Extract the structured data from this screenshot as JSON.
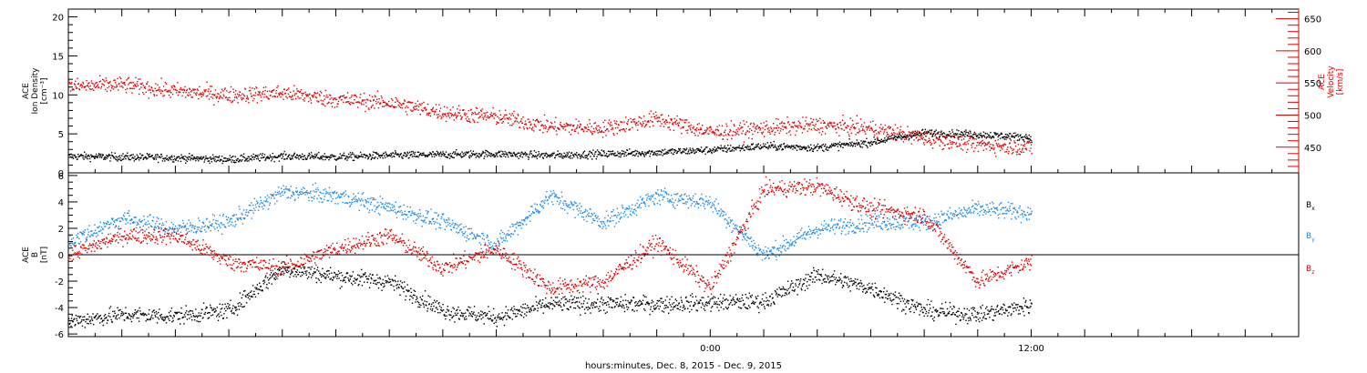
{
  "chart_data": [
    {
      "type": "scatter",
      "panel": "top",
      "x_range_hours": [
        -24,
        22
      ],
      "ylim_left": [
        0,
        21
      ],
      "ylim_right": [
        410,
        665
      ],
      "ylabel_left": [
        "ACE",
        "Ion Density",
        "[cm⁻³]"
      ],
      "ylabel_right": [
        "ACE",
        "Velocity",
        "[km/s]"
      ],
      "left_ticks": [
        0,
        5,
        10,
        15,
        20
      ],
      "right_ticks": [
        450,
        500,
        550,
        600,
        650
      ],
      "colors": {
        "density": "#000000",
        "velocity": "#e00000"
      },
      "series": [
        {
          "axis": "left",
          "x": [
            -24,
            -22,
            -20,
            -18,
            -16,
            -14,
            -12,
            -10,
            -8,
            -6,
            -4,
            -2,
            0,
            2,
            4,
            6,
            8,
            10,
            12
          ],
          "y": [
            2.2,
            2.1,
            2.0,
            1.8,
            2.2,
            2.1,
            2.3,
            2.4,
            2.5,
            2.3,
            2.5,
            2.7,
            3.0,
            3.5,
            3.3,
            4.0,
            5.2,
            5.0,
            4.6
          ]
        },
        {
          "axis": "right",
          "x": [
            -24,
            -22,
            -20,
            -18,
            -16,
            -14,
            -12,
            -10,
            -8,
            -6,
            -4,
            -2,
            0,
            2,
            4,
            6,
            8,
            10,
            12
          ],
          "y": [
            545,
            548,
            538,
            532,
            535,
            525,
            520,
            505,
            498,
            483,
            480,
            495,
            474,
            480,
            485,
            480,
            465,
            455,
            450
          ]
        }
      ]
    },
    {
      "type": "scatter",
      "panel": "bottom",
      "x_range_hours": [
        -24,
        22
      ],
      "ylim": [
        -6.2,
        6.2
      ],
      "ylabel": [
        "ACE",
        "B",
        "[nT]"
      ],
      "y_ticks": [
        -6,
        -4,
        -2,
        0,
        2,
        4,
        6
      ],
      "legend": [
        {
          "label": "B",
          "sub": "x",
          "color": "#000000"
        },
        {
          "label": "B",
          "sub": "y",
          "color": "#1e8ae8"
        },
        {
          "label": "B",
          "sub": "z",
          "color": "#e00000"
        }
      ],
      "series": [
        {
          "name": "Bx",
          "x": [
            -24,
            -22,
            -20,
            -18,
            -16,
            -14,
            -12,
            -10,
            -8,
            -6,
            -4,
            -2,
            0,
            2,
            4,
            6,
            8,
            10,
            12
          ],
          "y": [
            -5.0,
            -4.5,
            -4.6,
            -4.2,
            -1.0,
            -1.6,
            -2.0,
            -4.2,
            -4.7,
            -3.7,
            -3.7,
            -3.7,
            -3.6,
            -3.5,
            -1.5,
            -2.5,
            -4.2,
            -4.5,
            -3.8
          ]
        },
        {
          "name": "By",
          "x": [
            -24,
            -22,
            -20,
            -18,
            -16,
            -14,
            -12,
            -10,
            -8,
            -6,
            -4,
            -2,
            0,
            2,
            4,
            6,
            8,
            10,
            12
          ],
          "y": [
            1.0,
            2.8,
            2.0,
            2.5,
            4.8,
            4.5,
            3.6,
            2.5,
            0.8,
            4.5,
            2.5,
            4.5,
            4.0,
            0.0,
            2.0,
            2.5,
            2.5,
            3.5,
            3.2
          ]
        },
        {
          "name": "Bz",
          "x": [
            -24,
            -22,
            -20,
            -18,
            -16,
            -14,
            -12,
            -10,
            -8,
            -6,
            -4,
            -2,
            0,
            2,
            4,
            6,
            8,
            10,
            12
          ],
          "y": [
            0.0,
            1.5,
            1.5,
            -0.5,
            -1.0,
            0.5,
            1.5,
            -1.0,
            0.5,
            -2.5,
            -2.0,
            1.0,
            -2.5,
            5.0,
            5.2,
            3.5,
            3.0,
            -2.0,
            -0.5
          ]
        }
      ]
    }
  ],
  "x_tick_labels": [
    "0:00",
    "12:00"
  ],
  "x_title": "hours:minutes, Dec.  8, 2015 - Dec.  9, 2015"
}
